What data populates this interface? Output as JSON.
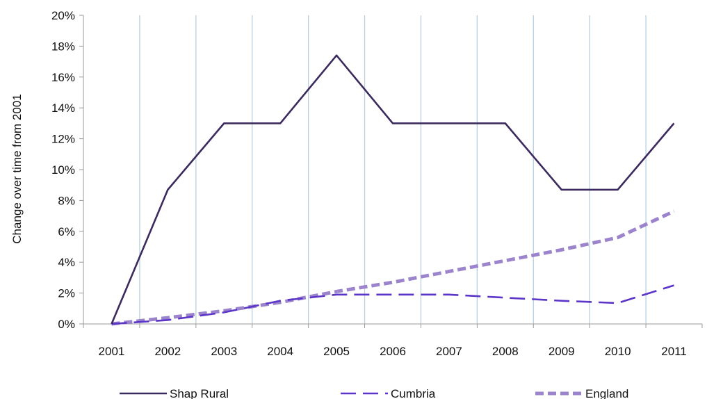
{
  "chart_data": {
    "type": "line",
    "x": [
      "2001",
      "2002",
      "2003",
      "2004",
      "2005",
      "2006",
      "2007",
      "2008",
      "2009",
      "2010",
      "2011"
    ],
    "series": [
      {
        "name": "Shap Rural",
        "values": [
          0,
          8.7,
          13.0,
          13.0,
          17.4,
          13.0,
          13.0,
          13.0,
          8.7,
          8.7,
          13.0
        ],
        "color": "#3b2a5e",
        "style": "solid"
      },
      {
        "name": "Cumbria",
        "values": [
          0,
          0.25,
          0.75,
          1.5,
          1.9,
          1.9,
          1.9,
          1.7,
          1.5,
          1.35,
          2.5
        ],
        "color": "#5b35c8",
        "style": "dashed"
      },
      {
        "name": "England",
        "values": [
          0,
          0.4,
          0.85,
          1.4,
          2.1,
          2.7,
          3.4,
          4.1,
          4.8,
          5.6,
          7.3
        ],
        "color": "#9b84cc",
        "style": "short-dashed"
      }
    ],
    "title": "",
    "xlabel": "",
    "ylabel": "Change over  time from 2001",
    "ylim": [
      0,
      20
    ],
    "y_ticks": [
      "0%",
      "2%",
      "4%",
      "6%",
      "8%",
      "10%",
      "12%",
      "14%",
      "16%",
      "18%",
      "20%"
    ],
    "grid": "vertical",
    "grid_color": "#b8cfe0",
    "legend": "bottom"
  }
}
